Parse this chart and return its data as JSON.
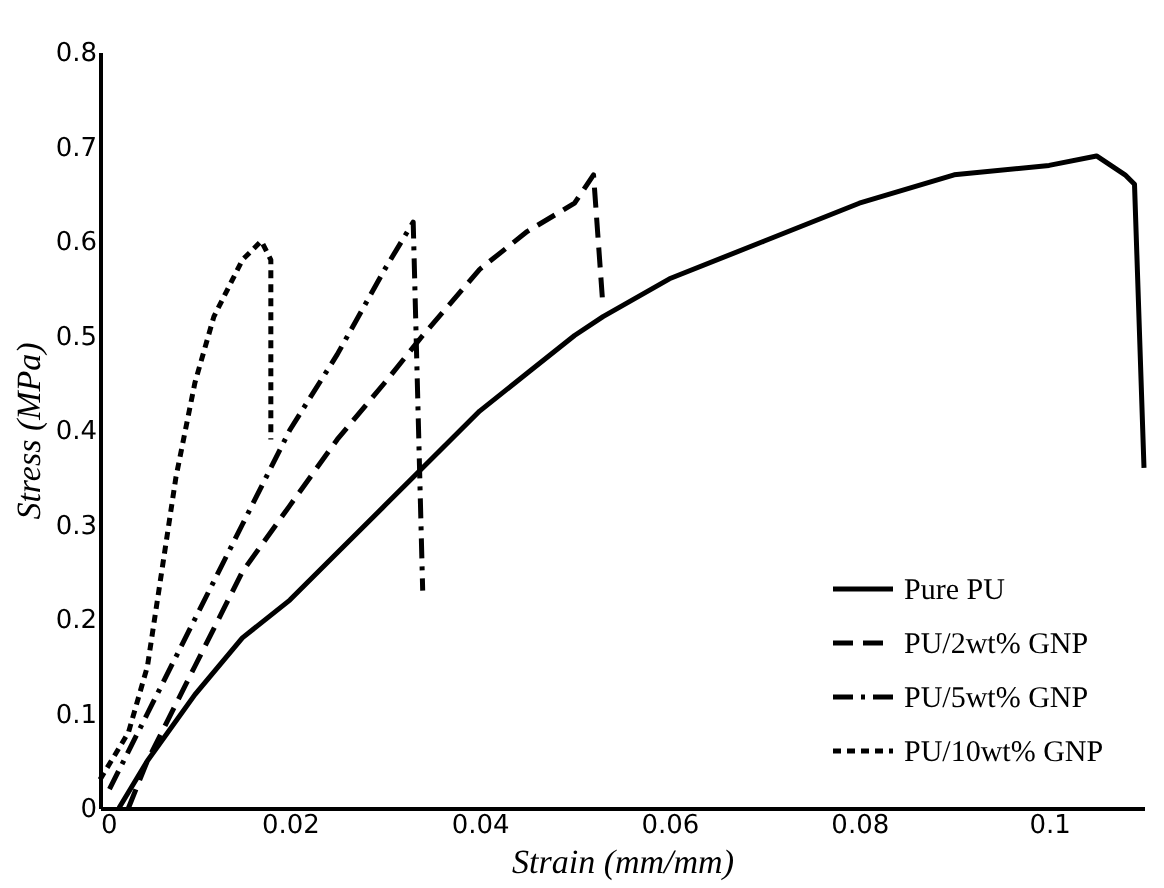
{
  "chart_data": {
    "type": "line",
    "xlabel": "Strain (mm/mm)",
    "ylabel": "Stress (MPa)",
    "xlim": [
      0,
      0.11
    ],
    "ylim": [
      0,
      0.8
    ],
    "xticks": [
      0,
      0.02,
      0.04,
      0.06,
      0.08,
      0.1
    ],
    "yticks": [
      0,
      0.1,
      0.2,
      0.3,
      0.4,
      0.5,
      0.6,
      0.7,
      0.8
    ],
    "grid": false,
    "legend": "bottom right",
    "series": [
      {
        "name": "Pure PU",
        "color": "#000000",
        "line_style": "solid",
        "x": [
          0.002,
          0.005,
          0.01,
          0.015,
          0.02,
          0.025,
          0.03,
          0.034,
          0.04,
          0.045,
          0.05,
          0.053,
          0.06,
          0.07,
          0.08,
          0.09,
          0.1,
          0.105,
          0.108,
          0.109,
          0.11
        ],
        "values": [
          0,
          0.05,
          0.12,
          0.18,
          0.22,
          0.27,
          0.32,
          0.36,
          0.42,
          0.46,
          0.5,
          0.52,
          0.56,
          0.6,
          0.64,
          0.67,
          0.68,
          0.69,
          0.67,
          0.66,
          0.36
        ]
      },
      {
        "name": "PU/2wt% GNP",
        "color": "#000000",
        "line_style": "dashed",
        "x": [
          0.003,
          0.005,
          0.01,
          0.015,
          0.02,
          0.025,
          0.03,
          0.034,
          0.04,
          0.045,
          0.05,
          0.052,
          0.053
        ],
        "values": [
          0,
          0.05,
          0.15,
          0.25,
          0.32,
          0.39,
          0.45,
          0.5,
          0.57,
          0.61,
          0.64,
          0.67,
          0.53
        ]
      },
      {
        "name": "PU/5wt% GNP",
        "color": "#000000",
        "line_style": "dashdot",
        "x": [
          0.001,
          0.005,
          0.01,
          0.015,
          0.02,
          0.025,
          0.03,
          0.033,
          0.034
        ],
        "values": [
          0.02,
          0.1,
          0.2,
          0.3,
          0.4,
          0.48,
          0.57,
          0.62,
          0.23
        ]
      },
      {
        "name": "PU/10wt% GNP",
        "color": "#000000",
        "line_style": "dotted",
        "x": [
          0,
          0.003,
          0.005,
          0.008,
          0.01,
          0.012,
          0.015,
          0.017,
          0.018,
          0.018
        ],
        "values": [
          0.03,
          0.08,
          0.15,
          0.35,
          0.45,
          0.52,
          0.58,
          0.6,
          0.58,
          0.39
        ]
      }
    ]
  }
}
